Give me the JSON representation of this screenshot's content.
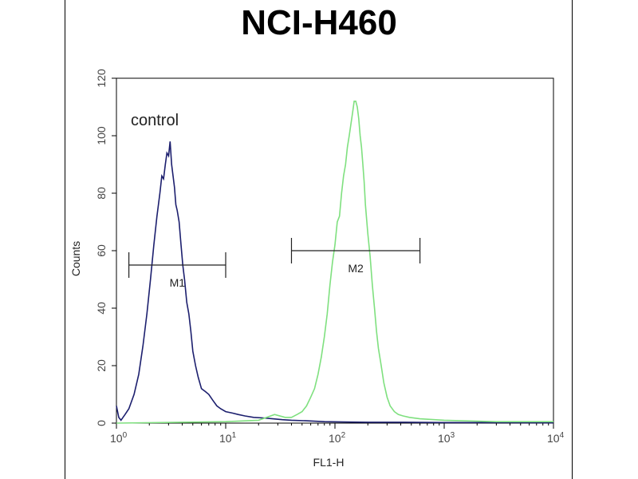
{
  "chart_data": {
    "type": "line",
    "title": "NCI-H460",
    "xlabel": "FL1-H",
    "ylabel": "Counts",
    "xscale": "log",
    "xlim": [
      1,
      10000
    ],
    "ylim": [
      0,
      120
    ],
    "x_ticks": [
      {
        "base": "10",
        "exp": "0",
        "value": 1
      },
      {
        "base": "10",
        "exp": "1",
        "value": 10
      },
      {
        "base": "10",
        "exp": "2",
        "value": 100
      },
      {
        "base": "10",
        "exp": "3",
        "value": 1000
      },
      {
        "base": "10",
        "exp": "4",
        "value": 10000
      }
    ],
    "y_ticks": [
      "0",
      "20",
      "40",
      "60",
      "80",
      "100",
      "120"
    ],
    "annotations": {
      "control_label": "control",
      "gates": [
        {
          "label": "M1",
          "x_start": 1.3,
          "x_end": 10,
          "y": 55
        },
        {
          "label": "M2",
          "x_start": 40,
          "x_end": 600,
          "y": 60
        }
      ]
    },
    "colors": {
      "control": "#1c1f6e",
      "sample": "#7fe07f"
    },
    "series": [
      {
        "x": [
          1.0,
          1.05,
          1.1,
          1.2,
          1.3,
          1.45,
          1.6,
          1.75,
          1.9,
          2.05,
          2.2,
          2.35,
          2.5,
          2.6,
          2.7,
          2.8,
          2.9,
          3.0,
          3.1,
          3.2,
          3.3,
          3.4,
          3.5,
          3.6,
          3.75,
          3.9,
          4.05,
          4.2,
          4.4,
          4.6,
          4.8,
          5.0,
          5.3,
          5.6,
          6.0,
          6.5,
          7.0,
          7.6,
          8.3,
          9.0,
          10,
          11.5,
          13,
          15,
          18,
          22,
          27,
          33,
          40,
          55,
          80,
          120,
          200,
          400,
          1000,
          3000,
          10000
        ],
        "y": [
          6,
          2,
          1,
          3,
          5,
          10,
          17,
          27,
          38,
          50,
          62,
          72,
          80,
          86,
          85,
          90,
          94,
          93,
          98,
          90,
          86,
          82,
          76,
          74,
          70,
          62,
          55,
          50,
          42,
          38,
          32,
          25,
          20,
          16,
          12,
          11,
          10,
          8,
          6,
          5,
          4,
          3.5,
          3,
          2.5,
          2,
          1.8,
          1.5,
          1.2,
          1,
          0.8,
          0.5,
          0.4,
          0.3,
          0.3,
          0.2,
          0.2,
          0.1
        ]
      },
      {
        "x": [
          1,
          10,
          20,
          28,
          35,
          40,
          45,
          50,
          55,
          60,
          65,
          70,
          75,
          80,
          85,
          90,
          95,
          100,
          105,
          110,
          115,
          120,
          125,
          130,
          135,
          140,
          145,
          150,
          155,
          160,
          165,
          170,
          175,
          180,
          185,
          190,
          200,
          210,
          220,
          230,
          240,
          250,
          265,
          280,
          300,
          320,
          350,
          380,
          420,
          480,
          600,
          1000,
          3000,
          10000
        ],
        "y": [
          0,
          0.5,
          1,
          3,
          2,
          2,
          3,
          4,
          6,
          9,
          12,
          17,
          23,
          30,
          38,
          48,
          56,
          62,
          70,
          72,
          80,
          86,
          90,
          96,
          100,
          104,
          108,
          112,
          112,
          110,
          106,
          100,
          96,
          90,
          84,
          76,
          66,
          58,
          48,
          40,
          32,
          26,
          20,
          14,
          9,
          6,
          4,
          3,
          2.5,
          2,
          1.5,
          1,
          0.5,
          0.5
        ]
      }
    ]
  }
}
